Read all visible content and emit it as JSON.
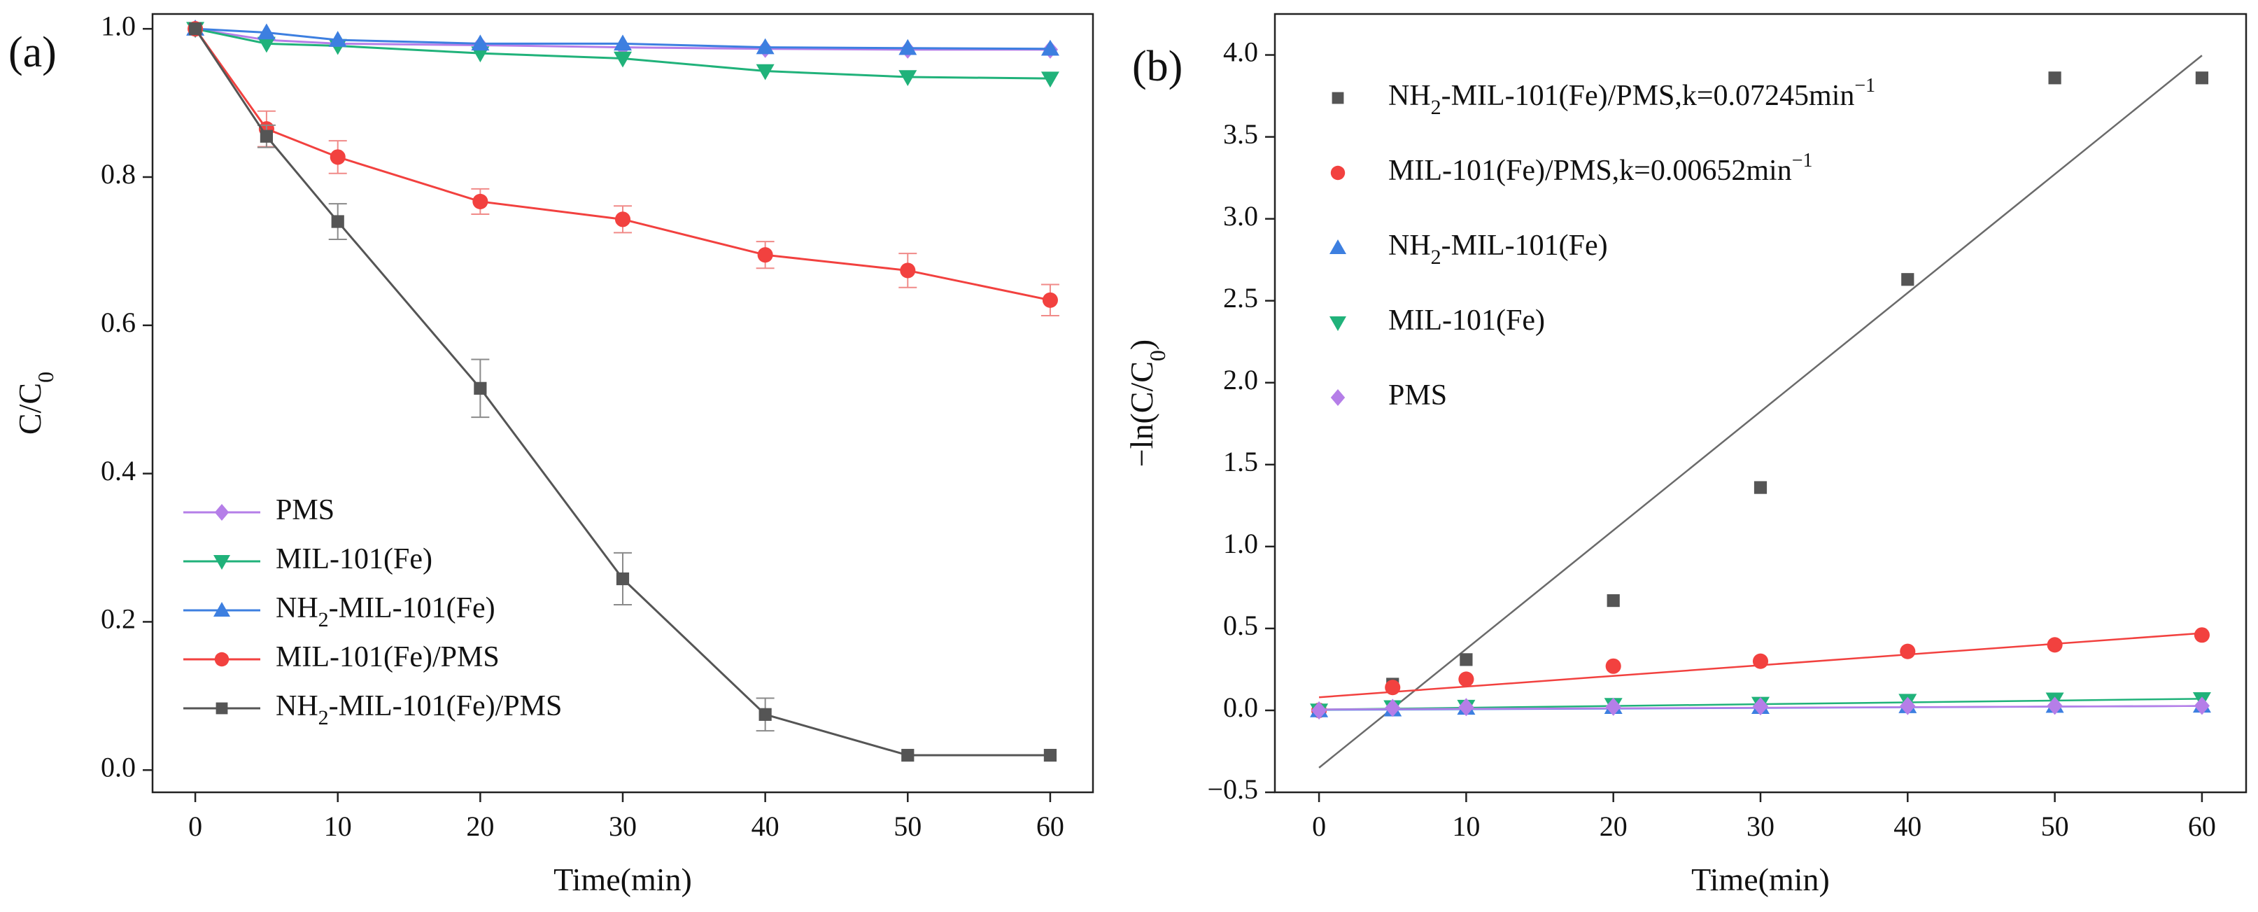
{
  "chart_data": [
    {
      "panel_label": "(a)",
      "type": "line",
      "xlabel": "Time(min)",
      "ylabel_main": "C/C",
      "ylabel_sub": "0",
      "xlim": [
        -3,
        63
      ],
      "ylim": [
        -0.03,
        1.02
      ],
      "xticks": [
        0,
        10,
        20,
        30,
        40,
        50,
        60
      ],
      "xtick_labels": [
        "0",
        "10",
        "20",
        "30",
        "40",
        "50",
        "60"
      ],
      "yticks": [
        0.0,
        0.2,
        0.4,
        0.6,
        0.8,
        1.0
      ],
      "ytick_labels": [
        "0.0",
        "0.2",
        "0.4",
        "0.6",
        "0.8",
        "1.0"
      ],
      "grid": false,
      "legend_position": "lower-left",
      "x": [
        0,
        5,
        10,
        20,
        30,
        40,
        50,
        60
      ],
      "series": [
        {
          "name": "PMS",
          "label_main": "PMS",
          "label_sub": "",
          "label_rest": "",
          "color": "#b57ee8",
          "marker": "diamond",
          "values": [
            1.0,
            0.985,
            0.98,
            0.978,
            0.975,
            0.973,
            0.972,
            0.972
          ],
          "errors": []
        },
        {
          "name": "MIL-101(Fe)",
          "label_main": "MIL-101(Fe)",
          "label_sub": "",
          "label_rest": "",
          "color": "#20b27a",
          "marker": "triangle-down",
          "values": [
            1.0,
            0.98,
            0.977,
            0.967,
            0.96,
            0.943,
            0.935,
            0.933
          ],
          "errors": []
        },
        {
          "name": "NH2-MIL-101(Fe)",
          "label_main": "NH",
          "label_sub": "2",
          "label_rest": "-MIL-101(Fe)",
          "color": "#3d7fe0",
          "marker": "triangle-up",
          "values": [
            1.0,
            0.995,
            0.985,
            0.98,
            0.98,
            0.975,
            0.974,
            0.973
          ],
          "errors": []
        },
        {
          "name": "MIL-101(Fe)/PMS",
          "label_main": "MIL-101(Fe)/PMS",
          "label_sub": "",
          "label_rest": "",
          "color": "#f2413f",
          "marker": "circle",
          "values": [
            1.0,
            0.865,
            0.827,
            0.767,
            0.743,
            0.695,
            0.674,
            0.634
          ],
          "errors": [
            0,
            0.024,
            0.022,
            0.017,
            0.018,
            0.018,
            0.023,
            0.021
          ]
        },
        {
          "name": "NH2-MIL-101(Fe)/PMS",
          "label_main": "NH",
          "label_sub": "2",
          "label_rest": "-MIL-101(Fe)/PMS",
          "color": "#555555",
          "marker": "square",
          "values": [
            1.0,
            0.855,
            0.74,
            0.515,
            0.258,
            0.075,
            0.02,
            0.02
          ],
          "errors": [
            0,
            0.015,
            0.024,
            0.039,
            0.035,
            0.022,
            0.0,
            0.0
          ]
        }
      ]
    },
    {
      "panel_label": "(b)",
      "type": "scatter",
      "xlabel": "Time(min)",
      "ylabel_main": "−ln(C/C",
      "ylabel_sub": "0",
      "ylabel_end": ")",
      "xlim": [
        -3,
        63
      ],
      "ylim": [
        -0.5,
        4.25
      ],
      "xticks": [
        0,
        10,
        20,
        30,
        40,
        50,
        60
      ],
      "xtick_labels": [
        "0",
        "10",
        "20",
        "30",
        "40",
        "50",
        "60"
      ],
      "yticks": [
        -0.5,
        0.0,
        0.5,
        1.0,
        1.5,
        2.0,
        2.5,
        3.0,
        3.5,
        4.0
      ],
      "ytick_labels": [
        "−0.5",
        "0.0",
        "0.5",
        "1.0",
        "1.5",
        "2.0",
        "2.5",
        "3.0",
        "3.5",
        "4.0"
      ],
      "grid": false,
      "legend_position": "top-left",
      "x": [
        0,
        5,
        10,
        20,
        30,
        40,
        50,
        60
      ],
      "series": [
        {
          "name": "NH2-MIL-101(Fe)/PMS,k=0.07245min-1",
          "label_main": "NH",
          "label_sub": "2",
          "label_rest": "-MIL-101(Fe)/PMS,k=0.07245min",
          "label_sup": "−1",
          "color": "#555555",
          "marker": "square",
          "values": [
            0.0,
            0.16,
            0.31,
            0.67,
            1.36,
            2.63,
            3.86,
            3.86
          ],
          "fit": [
            -0.35,
            0.07245
          ]
        },
        {
          "name": "MIL-101(Fe)/PMS,k=0.00652min-1",
          "label_main": "MIL-101(Fe)/PMS,k=0.00652min",
          "label_sub": "",
          "label_rest": "",
          "label_sup": "−1",
          "color": "#f2413f",
          "marker": "circle",
          "values": [
            0.0,
            0.14,
            0.19,
            0.27,
            0.3,
            0.36,
            0.4,
            0.46
          ],
          "fit": [
            0.08,
            0.00652
          ]
        },
        {
          "name": "NH2-MIL-101(Fe)",
          "label_main": "NH",
          "label_sub": "2",
          "label_rest": "-MIL-101(Fe)",
          "label_sup": "",
          "color": "#3d7fe0",
          "marker": "triangle-up",
          "values": [
            0.0,
            0.005,
            0.015,
            0.02,
            0.02,
            0.025,
            0.027,
            0.028
          ],
          "fit": [
            0.003,
            0.0004
          ]
        },
        {
          "name": "MIL-101(Fe)",
          "label_main": "MIL-101(Fe)",
          "label_sub": "",
          "label_rest": "",
          "label_sup": "",
          "color": "#20b27a",
          "marker": "triangle-down",
          "values": [
            0.0,
            0.02,
            0.023,
            0.034,
            0.041,
            0.059,
            0.067,
            0.069
          ],
          "fit": [
            0.005,
            0.0011
          ]
        },
        {
          "name": "PMS",
          "label_main": "PMS",
          "label_sub": "",
          "label_rest": "",
          "label_sup": "",
          "color": "#b57ee8",
          "marker": "diamond",
          "values": [
            0.0,
            0.015,
            0.02,
            0.022,
            0.025,
            0.027,
            0.028,
            0.028
          ],
          "fit": [
            0.006,
            0.00035
          ]
        }
      ]
    }
  ]
}
